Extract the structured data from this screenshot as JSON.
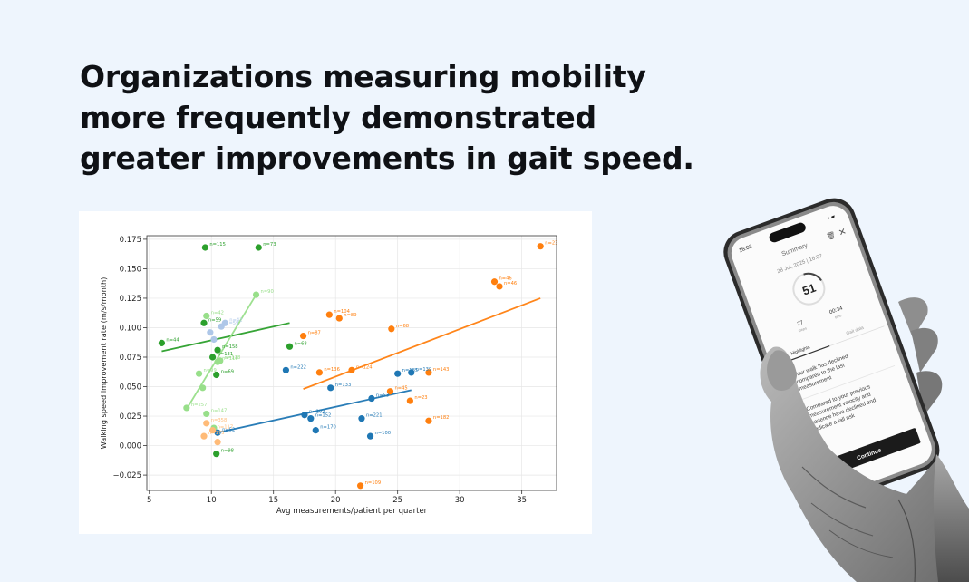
{
  "headline": {
    "line1": "Organizations measuring mobility",
    "line2": "more frequently demonstrated",
    "line3": "greater improvements in gait speed."
  },
  "chart_data": {
    "type": "scatter",
    "xlabel": "Avg measurements/patient per quarter",
    "ylabel": "Walking speed improvement rate (m/s/month)",
    "xlim": [
      4.8,
      37.8
    ],
    "ylim": [
      -0.038,
      0.178
    ],
    "xticks": [
      5,
      10,
      15,
      20,
      25,
      30,
      35
    ],
    "yticks": [
      -0.025,
      0.0,
      0.025,
      0.05,
      0.075,
      0.1,
      0.125,
      0.15,
      0.175
    ],
    "ytick_labels": [
      "−0.025",
      "0.000",
      "0.025",
      "0.050",
      "0.075",
      "0.100",
      "0.125",
      "0.150",
      "0.175"
    ],
    "grid": true,
    "series": [
      {
        "color": "#2ca02c",
        "points": [
          {
            "x": 9.5,
            "y": 0.168,
            "label": "n=115"
          },
          {
            "x": 13.8,
            "y": 0.168,
            "label": "n=73"
          },
          {
            "x": 6.0,
            "y": 0.087,
            "label": "n=44"
          },
          {
            "x": 9.4,
            "y": 0.104,
            "label": "n=59"
          },
          {
            "x": 16.3,
            "y": 0.084,
            "label": "n=68"
          },
          {
            "x": 10.5,
            "y": 0.081,
            "label": "n=158"
          },
          {
            "x": 10.1,
            "y": 0.075,
            "label": "n=131"
          },
          {
            "x": 10.4,
            "y": 0.06,
            "label": "n=69"
          },
          {
            "x": 10.4,
            "y": -0.007,
            "label": "n=98"
          }
        ],
        "trend": [
          [
            6.0,
            0.08
          ],
          [
            16.3,
            0.104
          ]
        ]
      },
      {
        "color": "#98df8a",
        "points": [
          {
            "x": 13.6,
            "y": 0.128,
            "label": "n=90"
          },
          {
            "x": 9.6,
            "y": 0.11,
            "label": "n=42"
          },
          {
            "x": 10.7,
            "y": 0.072,
            "label": "n=118"
          },
          {
            "x": 9.0,
            "y": 0.061,
            "label": "n=99"
          },
          {
            "x": 9.3,
            "y": 0.049,
            "label": ""
          },
          {
            "x": 8.0,
            "y": 0.032,
            "label": "n=257"
          },
          {
            "x": 9.6,
            "y": 0.027,
            "label": "n=147"
          },
          {
            "x": 10.2,
            "y": 0.015,
            "label": ""
          },
          {
            "x": 10.5,
            "y": 0.071,
            "label": "n=116"
          }
        ],
        "trend": [
          [
            8.0,
            0.031
          ],
          [
            13.6,
            0.128
          ]
        ]
      },
      {
        "color": "#aec7e8",
        "points": [
          {
            "x": 9.9,
            "y": 0.096,
            "label": ""
          },
          {
            "x": 10.8,
            "y": 0.101,
            "label": "n=59"
          },
          {
            "x": 11.1,
            "y": 0.104,
            "label": "n=42"
          },
          {
            "x": 10.2,
            "y": 0.09,
            "label": ""
          }
        ],
        "trend": []
      },
      {
        "color": "#1f77b4",
        "points": [
          {
            "x": 16.0,
            "y": 0.064,
            "label": "n=222"
          },
          {
            "x": 19.6,
            "y": 0.049,
            "label": "n=133"
          },
          {
            "x": 25.0,
            "y": 0.061,
            "label": "n=185"
          },
          {
            "x": 26.1,
            "y": 0.062,
            "label": "n=139"
          },
          {
            "x": 22.9,
            "y": 0.04,
            "label": "n=53"
          },
          {
            "x": 17.5,
            "y": 0.026,
            "label": "n=102"
          },
          {
            "x": 18.0,
            "y": 0.023,
            "label": "n=152"
          },
          {
            "x": 22.1,
            "y": 0.023,
            "label": "n=221"
          },
          {
            "x": 18.4,
            "y": 0.013,
            "label": "n=170"
          },
          {
            "x": 22.8,
            "y": 0.008,
            "label": "n=100"
          },
          {
            "x": 10.5,
            "y": 0.011,
            "label": "n=52"
          }
        ],
        "trend": [
          [
            10.5,
            0.011
          ],
          [
            26.1,
            0.047
          ]
        ]
      },
      {
        "color": "#ff7f0e",
        "points": [
          {
            "x": 36.5,
            "y": 0.169,
            "label": "n=23"
          },
          {
            "x": 32.8,
            "y": 0.139,
            "label": "n=46"
          },
          {
            "x": 33.2,
            "y": 0.135,
            "label": "n=46"
          },
          {
            "x": 19.5,
            "y": 0.111,
            "label": "n=104"
          },
          {
            "x": 20.3,
            "y": 0.108,
            "label": "n=89"
          },
          {
            "x": 24.5,
            "y": 0.099,
            "label": "n=68"
          },
          {
            "x": 17.4,
            "y": 0.093,
            "label": "n=87"
          },
          {
            "x": 21.3,
            "y": 0.064,
            "label": "n=124"
          },
          {
            "x": 18.7,
            "y": 0.062,
            "label": "n=136"
          },
          {
            "x": 27.5,
            "y": 0.062,
            "label": "n=143"
          },
          {
            "x": 24.4,
            "y": 0.046,
            "label": "n=45"
          },
          {
            "x": 26.0,
            "y": 0.038,
            "label": "n=23"
          },
          {
            "x": 27.5,
            "y": 0.021,
            "label": "n=182"
          },
          {
            "x": 22.0,
            "y": -0.034,
            "label": "n=109"
          }
        ],
        "trend": [
          [
            17.4,
            0.048
          ],
          [
            36.5,
            0.125
          ]
        ]
      },
      {
        "color": "#ffbb78",
        "points": [
          {
            "x": 9.6,
            "y": 0.019,
            "label": "n=358"
          },
          {
            "x": 9.4,
            "y": 0.008,
            "label": "n=175"
          },
          {
            "x": 10.5,
            "y": 0.003,
            "label": ""
          },
          {
            "x": 10.1,
            "y": 0.013,
            "label": "n=117"
          }
        ],
        "trend": []
      }
    ]
  },
  "phone": {
    "status_time": "16:03",
    "title": "Summary",
    "date": "28 Jul, 2025 | 16:02",
    "score": "51",
    "stat_left_value": "27",
    "stat_left_label": "steps",
    "stat_right_value": "00:34",
    "stat_right_label": "time",
    "tab_active": "Highlights",
    "tab_other": "Gait data",
    "item1": [
      "Your walk has declined",
      "compared to the last",
      "measurement"
    ],
    "item2": [
      "Compared to your previous",
      "measurement velocity and",
      "cadence have declined and",
      "indicate a fall risk"
    ],
    "button": "Continue"
  }
}
